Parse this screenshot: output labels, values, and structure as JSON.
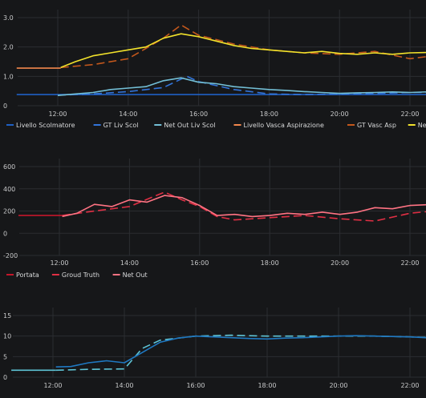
{
  "chart_data": [
    {
      "type": "line",
      "title": "",
      "x_axis": {
        "start": "11:00",
        "end": "22:40",
        "ticks": [
          "12:00",
          "14:00",
          "16:00",
          "18:00",
          "20:00",
          "22:00"
        ]
      },
      "y_axis": {
        "min": 0,
        "max": 3.0,
        "ticks": [
          "0",
          "1.0",
          "2.0",
          "3.0"
        ]
      },
      "grid": true,
      "legend_position": "bottom",
      "series": [
        {
          "name": "Livello Scolmatore",
          "color": "#1f60c4",
          "style": "solid",
          "points": [
            [
              "10:50",
              0.38
            ],
            [
              "12:05",
              0.38
            ],
            [
              "22:40",
              0.38
            ]
          ]
        },
        {
          "name": "GT Liv Scol",
          "color": "#3274d9",
          "style": "dashed",
          "points": [
            [
              "12:00",
              0.36
            ],
            [
              "13:00",
              0.4
            ],
            [
              "14:00",
              0.48
            ],
            [
              "15:00",
              0.62
            ],
            [
              "15:40",
              1.0
            ],
            [
              "16:00",
              0.82
            ],
            [
              "17:00",
              0.55
            ],
            [
              "18:00",
              0.4
            ],
            [
              "19:00",
              0.38
            ],
            [
              "20:00",
              0.4
            ],
            [
              "21:00",
              0.42
            ],
            [
              "22:00",
              0.45
            ],
            [
              "22:40",
              0.45
            ]
          ]
        },
        {
          "name": "Net Out Liv Scol",
          "color": "#73bfd6",
          "style": "solid",
          "points": [
            [
              "12:00",
              0.35
            ],
            [
              "12:30",
              0.4
            ],
            [
              "13:00",
              0.45
            ],
            [
              "13:30",
              0.55
            ],
            [
              "14:00",
              0.6
            ],
            [
              "14:30",
              0.65
            ],
            [
              "15:00",
              0.85
            ],
            [
              "15:30",
              0.95
            ],
            [
              "16:00",
              0.8
            ],
            [
              "16:30",
              0.75
            ],
            [
              "17:00",
              0.65
            ],
            [
              "17:30",
              0.6
            ],
            [
              "18:00",
              0.55
            ],
            [
              "18:30",
              0.52
            ],
            [
              "19:00",
              0.48
            ],
            [
              "19:30",
              0.45
            ],
            [
              "20:00",
              0.42
            ],
            [
              "20:30",
              0.44
            ],
            [
              "21:00",
              0.45
            ],
            [
              "21:30",
              0.47
            ],
            [
              "22:00",
              0.45
            ],
            [
              "22:40",
              0.48
            ]
          ]
        },
        {
          "name": "Livello Vasca Aspirazione",
          "color": "#f2874c",
          "style": "solid",
          "points": [
            [
              "10:50",
              1.28
            ],
            [
              "12:05",
              1.28
            ]
          ]
        },
        {
          "name": "GT Vasc Asp",
          "color": "#c4581c",
          "style": "dashed",
          "points": [
            [
              "12:05",
              1.3
            ],
            [
              "13:00",
              1.4
            ],
            [
              "14:00",
              1.6
            ],
            [
              "15:00",
              2.3
            ],
            [
              "15:30",
              2.75
            ],
            [
              "16:00",
              2.4
            ],
            [
              "17:00",
              2.1
            ],
            [
              "18:00",
              1.9
            ],
            [
              "19:00",
              1.8
            ],
            [
              "20:00",
              1.75
            ],
            [
              "21:00",
              1.85
            ],
            [
              "22:00",
              1.6
            ],
            [
              "22:40",
              1.7
            ]
          ]
        },
        {
          "name": "Net Out Vasc Asp",
          "color": "#f2e22b",
          "style": "solid",
          "points": [
            [
              "12:05",
              1.3
            ],
            [
              "12:30",
              1.5
            ],
            [
              "13:00",
              1.7
            ],
            [
              "13:30",
              1.8
            ],
            [
              "14:00",
              1.9
            ],
            [
              "14:30",
              2.0
            ],
            [
              "15:00",
              2.3
            ],
            [
              "15:30",
              2.45
            ],
            [
              "16:00",
              2.35
            ],
            [
              "16:30",
              2.2
            ],
            [
              "17:00",
              2.05
            ],
            [
              "17:30",
              1.95
            ],
            [
              "18:00",
              1.9
            ],
            [
              "18:30",
              1.85
            ],
            [
              "19:00",
              1.8
            ],
            [
              "19:30",
              1.85
            ],
            [
              "20:00",
              1.78
            ],
            [
              "20:30",
              1.75
            ],
            [
              "21:00",
              1.8
            ],
            [
              "21:30",
              1.75
            ],
            [
              "22:00",
              1.8
            ],
            [
              "22:40",
              1.82
            ]
          ]
        }
      ]
    },
    {
      "type": "line",
      "title": "",
      "x_axis": {
        "start": "11:00",
        "end": "22:40",
        "ticks": [
          "12:00",
          "14:00",
          "16:00",
          "18:00",
          "20:00",
          "22:00"
        ]
      },
      "y_axis": {
        "min": -200,
        "max": 600,
        "ticks": [
          "-200",
          "0",
          "200",
          "400",
          "600"
        ]
      },
      "grid": true,
      "legend_position": "bottom",
      "series": [
        {
          "name": "Portata",
          "color": "#c4162a",
          "style": "solid",
          "points": [
            [
              "10:50",
              160
            ],
            [
              "12:05",
              160
            ]
          ]
        },
        {
          "name": "Groud Truth",
          "color": "#e02f44",
          "style": "dashed",
          "points": [
            [
              "12:05",
              160
            ],
            [
              "13:00",
              200
            ],
            [
              "14:00",
              240
            ],
            [
              "15:00",
              370
            ],
            [
              "15:30",
              300
            ],
            [
              "16:00",
              240
            ],
            [
              "16:30",
              150
            ],
            [
              "17:00",
              120
            ],
            [
              "18:00",
              140
            ],
            [
              "19:00",
              160
            ],
            [
              "20:00",
              130
            ],
            [
              "21:00",
              110
            ],
            [
              "22:00",
              180
            ],
            [
              "22:40",
              200
            ]
          ]
        },
        {
          "name": "Net Out",
          "color": "#ff7383",
          "style": "solid",
          "points": [
            [
              "12:05",
              150
            ],
            [
              "12:30",
              180
            ],
            [
              "13:00",
              260
            ],
            [
              "13:30",
              240
            ],
            [
              "14:00",
              300
            ],
            [
              "14:30",
              280
            ],
            [
              "15:00",
              340
            ],
            [
              "15:30",
              320
            ],
            [
              "16:00",
              250
            ],
            [
              "16:30",
              160
            ],
            [
              "17:00",
              170
            ],
            [
              "17:30",
              150
            ],
            [
              "18:00",
              160
            ],
            [
              "18:30",
              180
            ],
            [
              "19:00",
              170
            ],
            [
              "19:30",
              190
            ],
            [
              "20:00",
              170
            ],
            [
              "20:30",
              190
            ],
            [
              "21:00",
              230
            ],
            [
              "21:30",
              220
            ],
            [
              "22:00",
              250
            ],
            [
              "22:40",
              260
            ]
          ]
        }
      ]
    },
    {
      "type": "line",
      "title": "",
      "x_axis": {
        "start": "11:00",
        "end": "22:40",
        "ticks": [
          "12:00",
          "14:00",
          "16:00",
          "18:00",
          "20:00",
          "22:00"
        ]
      },
      "y_axis": {
        "min": 0,
        "max": 15,
        "ticks": [
          "0",
          "5",
          "10",
          "15"
        ]
      },
      "grid": true,
      "legend_position": "bottom",
      "series": [
        {
          "name": "",
          "color": "#5ec4d6",
          "style": "solid",
          "points": [
            [
              "10:50",
              1.7
            ],
            [
              "12:05",
              1.7
            ]
          ]
        },
        {
          "name": "",
          "color": "#5ec4d6",
          "style": "dashed",
          "points": [
            [
              "12:05",
              1.7
            ],
            [
              "13:00",
              1.9
            ],
            [
              "14:00",
              2.0
            ],
            [
              "14:30",
              7.0
            ],
            [
              "15:00",
              9.0
            ],
            [
              "16:00",
              10.0
            ],
            [
              "17:00",
              10.2
            ],
            [
              "18:00",
              10.0
            ],
            [
              "19:00",
              10.0
            ],
            [
              "20:00",
              10.0
            ],
            [
              "21:00",
              10.0
            ],
            [
              "22:00",
              9.8
            ],
            [
              "22:40",
              9.6
            ]
          ]
        },
        {
          "name": "",
          "color": "#1f78c1",
          "style": "solid",
          "points": [
            [
              "12:05",
              2.5
            ],
            [
              "12:30",
              2.6
            ],
            [
              "13:00",
              3.5
            ],
            [
              "13:30",
              4.0
            ],
            [
              "14:00",
              3.5
            ],
            [
              "14:30",
              6.0
            ],
            [
              "15:00",
              8.5
            ],
            [
              "15:30",
              9.5
            ],
            [
              "16:00",
              10.0
            ],
            [
              "16:30",
              9.8
            ],
            [
              "17:00",
              9.6
            ],
            [
              "17:30",
              9.4
            ],
            [
              "18:00",
              9.3
            ],
            [
              "18:30",
              9.5
            ],
            [
              "19:00",
              9.6
            ],
            [
              "19:30",
              9.8
            ],
            [
              "20:00",
              10.0
            ],
            [
              "20:30",
              10.1
            ],
            [
              "21:00",
              10.0
            ],
            [
              "21:30",
              9.9
            ],
            [
              "22:00",
              9.8
            ],
            [
              "22:40",
              9.5
            ]
          ]
        }
      ]
    }
  ]
}
